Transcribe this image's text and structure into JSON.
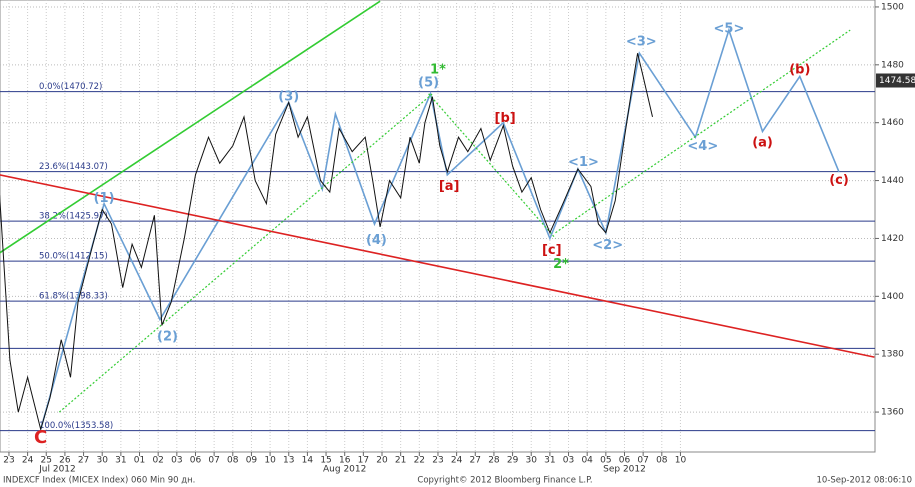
{
  "chart_data": {
    "type": "line",
    "title": "INDEXCF Index (MICEX Index) 060 Min 90 дн.",
    "copyright": "Copyright© 2012 Bloomberg Finance L.P.",
    "timestamp": "10-Sep-2012 08:06:10",
    "categories": [
      "23",
      "24",
      "25",
      "26",
      "27",
      "30",
      "31",
      "01",
      "02",
      "03",
      "06",
      "07",
      "08",
      "09",
      "10",
      "13",
      "14",
      "15",
      "16",
      "17",
      "20",
      "21",
      "22",
      "23",
      "24",
      "27",
      "28",
      "29",
      "30",
      "31",
      "03",
      "04",
      "05",
      "06",
      "07",
      "08",
      "10"
    ],
    "months": [
      {
        "value": 2.6,
        "label": "Jul 2012"
      },
      {
        "value": 18,
        "label": "Aug 2012"
      },
      {
        "value": 33,
        "label": "Sep 2012"
      }
    ],
    "xlim": [
      -0.48,
      46.43
    ],
    "ylim": [
      1346.2,
      1502.4
    ],
    "yticks": [
      1360,
      1380,
      1400,
      1420,
      1440,
      1460,
      1480,
      1500
    ],
    "grid": true,
    "last_price": 1474.58,
    "series": [
      {
        "name": "INDEXCF Index",
        "color": "#111111",
        "x": [
          -0.5,
          0.05,
          0.5,
          1.0,
          1.7,
          2.2,
          2.8,
          3.3,
          3.7,
          4.5,
          5.0,
          5.5,
          6.1,
          6.6,
          7.1,
          7.8,
          8.2,
          8.7,
          9.4,
          10.0,
          10.7,
          11.3,
          12.0,
          12.6,
          13.2,
          13.8,
          14.3,
          15.0,
          15.5,
          16.0,
          16.7,
          17.2,
          17.7,
          18.4,
          19.1,
          19.5,
          19.9,
          20.4,
          21.0,
          21.5,
          22.0,
          22.3,
          22.7,
          23.1,
          23.5,
          24.1,
          24.6,
          25.3,
          25.8,
          26.5,
          27.0,
          27.5,
          28.0,
          28.5,
          29.0,
          29.7,
          30.5,
          31.2,
          31.6,
          32.0,
          32.5,
          33.0,
          33.4,
          33.7,
          34.0,
          34.5
        ],
        "values": [
          1435,
          1378,
          1360,
          1372,
          1354,
          1365,
          1385,
          1372,
          1398,
          1418,
          1430,
          1425,
          1403,
          1418,
          1410,
          1428,
          1390,
          1398,
          1420,
          1442,
          1455,
          1446,
          1452,
          1462,
          1440,
          1432,
          1456,
          1467,
          1455,
          1462,
          1440,
          1436,
          1458,
          1450,
          1455,
          1440,
          1424,
          1440,
          1434,
          1455,
          1446,
          1460,
          1469,
          1452,
          1443,
          1455,
          1450,
          1458,
          1447,
          1459,
          1445,
          1436,
          1441,
          1430,
          1422,
          1432,
          1444,
          1438,
          1425,
          1422,
          1433,
          1455,
          1472,
          1484,
          1476,
          1462
        ]
      }
    ],
    "waves": [
      {
        "color": "#6a9fd4",
        "style": "solid",
        "x": [
          1.7,
          5.1,
          8.1,
          15.0,
          16.8,
          17.5,
          19.6,
          22.6,
          23.5,
          26.5,
          29.0,
          30.5,
          32.0,
          33.8,
          36.8,
          38.6,
          40.4,
          42.4,
          44.5
        ],
        "values": [
          1354,
          1432,
          1392,
          1467,
          1437,
          1463,
          1425,
          1470,
          1442,
          1460,
          1420,
          1444,
          1422,
          1484,
          1455,
          1492,
          1457,
          1476,
          1443
        ]
      },
      {
        "color": "#33cc33",
        "style": "dotted",
        "x": [
          2.7,
          22.7
        ],
        "values": [
          1360,
          1470
        ]
      },
      {
        "color": "#33cc33",
        "style": "dotted",
        "x": [
          22.5,
          29.3
        ],
        "values": [
          1470,
          1420
        ]
      },
      {
        "color": "#33cc33",
        "style": "dotted",
        "x": [
          29.3,
          45.1
        ],
        "values": [
          1422,
          1492
        ]
      },
      {
        "color": "#33cc33",
        "style": "solid",
        "x": [
          -0.5,
          19.9
        ],
        "values": [
          1415,
          1502
        ]
      },
      {
        "color": "#dd2222",
        "style": "solid",
        "x": [
          -0.5,
          46.4
        ],
        "values": [
          1442,
          1379
        ]
      }
    ],
    "levels": [
      {
        "value": 1470.72,
        "label": "0.0%(1470.72)"
      },
      {
        "value": 1443.07,
        "label": "23.6%(1443.07)"
      },
      {
        "value": 1425.97,
        "label": "38.2%(1425.97)"
      },
      {
        "value": 1412.15,
        "label": "50.0%(1412.15)"
      },
      {
        "value": 1398.33,
        "label": "61.8%(1398.33)"
      },
      {
        "value": 1353.58,
        "label": "100.0%(1353.58)"
      }
    ],
    "extra_levels": [
      1382
    ],
    "annotations": [
      {
        "text": "C",
        "x": 1.7,
        "y": 1351,
        "color": "#dd2222"
      },
      {
        "text": "(1)",
        "x": 5.1,
        "y": 1433.8,
        "color": "#6a9fd4"
      },
      {
        "text": "(2)",
        "x": 8.5,
        "y": 1386,
        "color": "#6a9fd4"
      },
      {
        "text": "(3)",
        "x": 15.0,
        "y": 1468.8,
        "color": "#6a9fd4"
      },
      {
        "text": "(4)",
        "x": 19.7,
        "y": 1419.3,
        "color": "#6a9fd4"
      },
      {
        "text": "(5)",
        "x": 22.5,
        "y": 1473.7,
        "color": "#6a9fd4"
      },
      {
        "text": "1*",
        "x": 23.0,
        "y": 1478.2,
        "color": "#33bb33"
      },
      {
        "text": "2*",
        "x": 29.6,
        "y": 1411,
        "color": "#33bb33"
      },
      {
        "text": "[a]",
        "x": 23.6,
        "y": 1438,
        "color": "#cc1111"
      },
      {
        "text": "[b]",
        "x": 26.6,
        "y": 1461.5,
        "color": "#cc1111"
      },
      {
        "text": "[c]",
        "x": 29.1,
        "y": 1415.8,
        "color": "#cc1111"
      },
      {
        "text": "<1>",
        "x": 30.8,
        "y": 1446.3,
        "color": "#6a9fd4"
      },
      {
        "text": "<2>",
        "x": 32.1,
        "y": 1417.5,
        "color": "#6a9fd4"
      },
      {
        "text": "<3>",
        "x": 33.9,
        "y": 1487.9,
        "color": "#6a9fd4"
      },
      {
        "text": "<4>",
        "x": 37.2,
        "y": 1451.8,
        "color": "#6a9fd4"
      },
      {
        "text": "<5>",
        "x": 38.6,
        "y": 1492.4,
        "color": "#6a9fd4"
      },
      {
        "text": "(a)",
        "x": 40.4,
        "y": 1452.9,
        "color": "#cc1111"
      },
      {
        "text": "(b)",
        "x": 42.4,
        "y": 1478.2,
        "color": "#cc1111"
      },
      {
        "text": "(c)",
        "x": 44.5,
        "y": 1440.1,
        "color": "#cc1111"
      }
    ]
  }
}
